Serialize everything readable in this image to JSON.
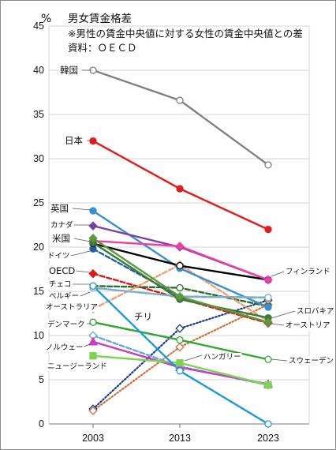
{
  "chart_data": {
    "type": "line",
    "title": "男女賃金格差",
    "subtitle": "※男性の賃金中央値に対する女性の賃金中央値との差",
    "source": "資料：ＯＥＣＤ",
    "ylabel": "%",
    "x": [
      "2003",
      "2013",
      "2023"
    ],
    "ylim": [
      0,
      45
    ],
    "yticks": [
      0,
      5,
      10,
      15,
      20,
      25,
      30,
      35,
      40,
      45
    ],
    "grid": true,
    "series": [
      {
        "name": "韓国",
        "values": [
          40.0,
          36.6,
          29.3
        ],
        "color": "#808080",
        "dash": "solid",
        "marker": "circle",
        "filled": false
      },
      {
        "name": "日本",
        "values": [
          32.0,
          26.6,
          22.0
        ],
        "color": "#e41a1c",
        "dash": "solid",
        "marker": "circle",
        "filled": true
      },
      {
        "name": "英国",
        "values": [
          24.1,
          17.6,
          13.2
        ],
        "color": "#3a8fd0",
        "dash": "solid",
        "marker": "circle",
        "filled": true
      },
      {
        "name": "カナダ",
        "values": [
          22.4,
          20.0,
          16.3
        ],
        "color": "#7b3fa0",
        "dash": "solid",
        "marker": "diamond",
        "filled": true
      },
      {
        "name": "米国",
        "values": [
          20.4,
          17.9,
          16.3
        ],
        "color": "#000000",
        "dash": "solid",
        "marker": "circle",
        "filled": false
      },
      {
        "name": "ドイツ",
        "values": [
          19.8,
          14.4,
          14.3
        ],
        "color": "#1f5fa8",
        "dash": "dash",
        "marker": "circle",
        "filled": true
      },
      {
        "name": "OECD",
        "values": [
          17.0,
          14.2,
          11.4
        ],
        "color": "#d81b1b",
        "dash": "dash",
        "marker": "diamond",
        "filled": true
      },
      {
        "name": "チェコ",
        "values": [
          15.6,
          15.4,
          13.3
        ],
        "color": "#2e6b2e",
        "dash": "dash",
        "marker": "circle",
        "filled": false
      },
      {
        "name": "ベルギー",
        "values": [
          15.4,
          14.4,
          14.3
        ],
        "color": "#7ab0c6",
        "dash": "solid",
        "marker": "circle",
        "filled": false
      },
      {
        "name": "オーストラリア",
        "values": [
          13.0,
          18.0,
          11.6
        ],
        "color": "#f0a070",
        "dash": "dash",
        "marker": "diamond",
        "filled": true
      },
      {
        "name": "デンマーク",
        "values": [
          11.5,
          9.5,
          7.3
        ],
        "color": "#2ea82e",
        "dash": "solid",
        "marker": "circle",
        "filled": false
      },
      {
        "name": "ノルウェー",
        "values": [
          9.3,
          6.4,
          4.5
        ],
        "color": "#c83cc8",
        "dash": "solid",
        "marker": "triangle",
        "filled": true
      },
      {
        "name": "ニュージーランド",
        "values": [
          7.7,
          6.9,
          4.4
        ],
        "color": "#7cd450",
        "dash": "solid",
        "marker": "square",
        "filled": true
      },
      {
        "name": "チリ",
        "values": [
          15.6,
          6.0,
          0.0
        ],
        "color": "#1a9bd7",
        "dash": "solid",
        "marker": "circle",
        "filled": false
      },
      {
        "name": "スウェーデン",
        "values": [
          10.0,
          6.5,
          4.4
        ],
        "color": "#6aa6dc",
        "dash": "dash",
        "marker": "diamond",
        "filled": false
      },
      {
        "name": "フィンランド",
        "values": [
          20.7,
          20.1,
          16.3
        ],
        "color": "#ee3fa8",
        "dash": "solid",
        "marker": "diamond",
        "filled": true
      },
      {
        "name": "スロバキア",
        "values": [
          20.5,
          14.1,
          12.0
        ],
        "color": "#3a7a3a",
        "dash": "solid",
        "marker": "circle",
        "filled": true
      },
      {
        "name": "オーストリア",
        "values": [
          21.0,
          14.4,
          11.5
        ],
        "color": "#5a9a3a",
        "dash": "solid",
        "marker": "diamond",
        "filled": true
      },
      {
        "name": "ハンガリー",
        "values": [
          1.7,
          10.8,
          14.0
        ],
        "color": "#1a3a8a",
        "dash": "dot",
        "marker": "diamond",
        "filled": false
      },
      {
        "name": "",
        "values": [
          1.5,
          8.7,
          13.5
        ],
        "color": "#d0703a",
        "dash": "dot",
        "marker": "diamond",
        "filled": false
      }
    ]
  }
}
